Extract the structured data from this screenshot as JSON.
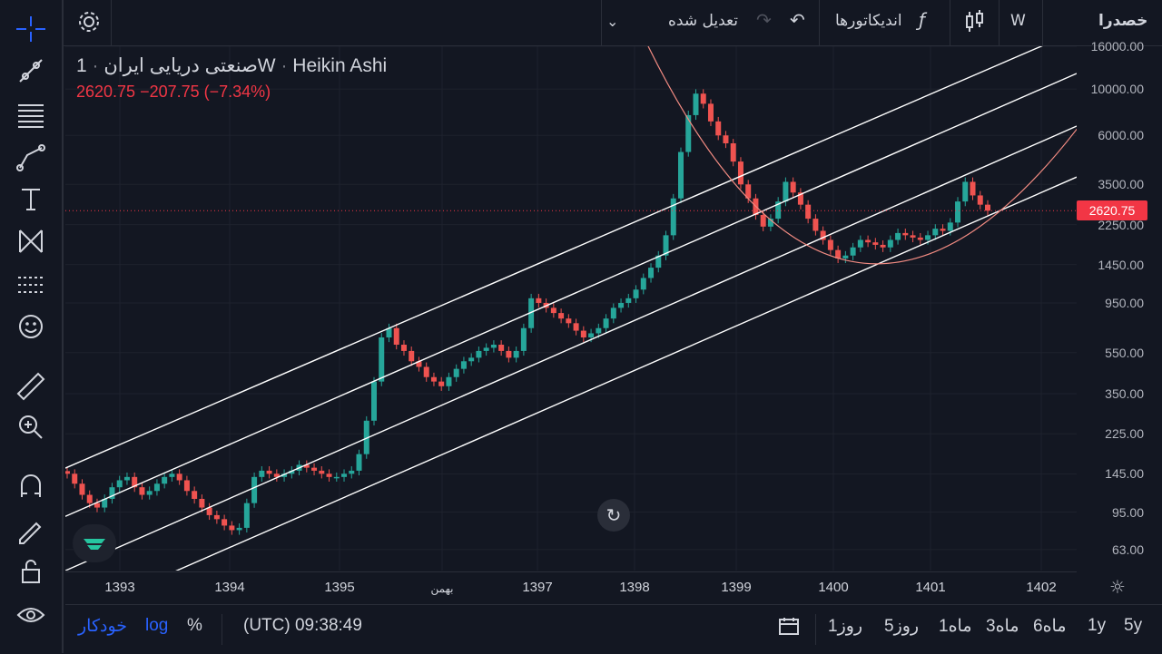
{
  "legend": {
    "symbol": "صنعتی دریایی ایران",
    "interval": "1W",
    "chart_style": "Heikin Ashi",
    "price_line": "2620.75  −207.75 (−7.34%)"
  },
  "topbar": {
    "symbol_search": "خصدرا",
    "interval_button": "W",
    "indicators_label": "اندیکاتورها",
    "adjusted_label": "تعدیل شده"
  },
  "price_tag": "2620.75",
  "bottombar": {
    "ranges": [
      "5y",
      "1y",
      "6ماه",
      "3ماه",
      "1ماه",
      "5روز",
      "1روز"
    ],
    "time": "(UTC) 09:38:49",
    "percent": "%",
    "log": "log",
    "auto": "خودکار"
  },
  "chart_data": {
    "type": "candlestick",
    "scale": "log",
    "ylim": [
      50,
      16000
    ],
    "y_ticks": [
      "16000.00",
      "10000.00",
      "6000.00",
      "3500.00",
      "2250.00",
      "1450.00",
      "950.00",
      "550.00",
      "350.00",
      "225.00",
      "145.00",
      "95.00",
      "63.00"
    ],
    "x_ticks": [
      "1393",
      "1394",
      "1395",
      "بهمن",
      "1397",
      "1398",
      "1399",
      "1400",
      "1401",
      "1402"
    ],
    "last_price": 2620.75,
    "change": -207.75,
    "change_pct": -7.34,
    "approx_weekly_closes": [
      145,
      130,
      115,
      105,
      100,
      110,
      125,
      135,
      140,
      125,
      115,
      120,
      130,
      140,
      145,
      135,
      120,
      110,
      100,
      92,
      88,
      82,
      78,
      80,
      105,
      140,
      150,
      145,
      140,
      145,
      150,
      160,
      155,
      150,
      145,
      140,
      140,
      145,
      150,
      180,
      260,
      400,
      650,
      720,
      600,
      560,
      500,
      470,
      420,
      400,
      380,
      420,
      460,
      500,
      520,
      560,
      580,
      600,
      560,
      520,
      560,
      720,
      1000,
      950,
      900,
      850,
      800,
      760,
      700,
      650,
      680,
      720,
      800,
      900,
      950,
      1000,
      1100,
      1250,
      1400,
      1600,
      2000,
      3000,
      5000,
      7500,
      9500,
      8500,
      7000,
      6000,
      5500,
      4500,
      3500,
      3000,
      2500,
      2200,
      2400,
      2900,
      3600,
      3200,
      2800,
      2400,
      2100,
      1900,
      1700,
      1550,
      1600,
      1750,
      1900,
      1850,
      1800,
      1750,
      1900,
      2050,
      2000,
      1950,
      1900,
      2000,
      2150,
      2100,
      2300,
      2900,
      3600,
      3100,
      2800,
      2621
    ],
    "channel_lines": [
      {
        "name": "upper",
        "points": [
          [
            "1393",
            200
          ],
          [
            "1402",
            16000
          ]
        ]
      },
      {
        "name": "upper-mid",
        "points": [
          [
            "1393",
            118
          ],
          [
            "1402",
            10000
          ]
        ]
      },
      {
        "name": "mid",
        "points": [
          [
            "1393",
            65
          ],
          [
            "1402",
            5600
          ]
        ]
      },
      {
        "name": "lower",
        "points": [
          [
            "1393",
            38
          ],
          [
            "1402",
            3200
          ]
        ]
      }
    ],
    "arc": {
      "start": [
        "1398",
        16000
      ],
      "bottom": [
        "1400",
        1500
      ],
      "end": [
        "1402",
        6500
      ]
    },
    "colors": {
      "up": "#26a69a",
      "down": "#ef5350",
      "lines": "#ffffff",
      "arc": "#f28b82",
      "price_line": "#f23645"
    }
  }
}
